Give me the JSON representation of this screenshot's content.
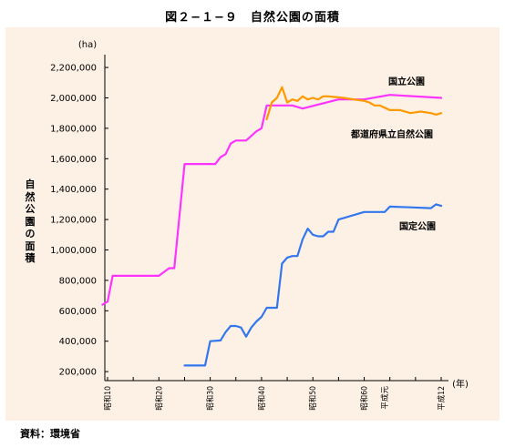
{
  "figure_title": "図２−１−９　自然公園の面積",
  "source": "資料：環境省",
  "colors": {
    "national_park": "#ff33ff",
    "quasi_national_park": "#3377ee",
    "prefectural_park": "#ff9900",
    "panel_background": "#fdf1e5"
  },
  "chart_data": {
    "type": "line",
    "title": "",
    "ylabel": "自然公園の面積",
    "yunit": "(ha)",
    "xunit": "(年)",
    "ylim": [
      100000,
      2300000
    ],
    "yticks": [
      200000,
      400000,
      600000,
      800000,
      1000000,
      1200000,
      1400000,
      1600000,
      1800000,
      2000000,
      2200000
    ],
    "ytick_labels": [
      "200,000",
      "400,000",
      "600,000",
      "800,000",
      "1,000,000",
      "1,200,000",
      "1,400,000",
      "1,600,000",
      "1,800,000",
      "2,000,000",
      "2,200,000"
    ],
    "xlim": [
      1935,
      2000
    ],
    "xticks": [
      1935,
      1945,
      1955,
      1965,
      1975,
      1985,
      1989,
      2000
    ],
    "xtick_labels": [
      "昭和10",
      "昭和20",
      "昭和30",
      "昭和40",
      "昭和50",
      "昭和60",
      "平成元",
      "平成12"
    ],
    "grid": false,
    "series": [
      {
        "name": "国立公園",
        "x": [
          1934,
          1935,
          1936,
          1944,
          1945,
          1947,
          1948,
          1950,
          1956,
          1957,
          1958,
          1959,
          1960,
          1962,
          1964,
          1965,
          1966,
          1970,
          1971,
          1972,
          1973,
          1980,
          1983,
          1984,
          1985,
          1990,
          2000
        ],
        "y": [
          640000,
          660000,
          830000,
          830000,
          830000,
          880000,
          880000,
          1565000,
          1565000,
          1610000,
          1630000,
          1700000,
          1720000,
          1720000,
          1780000,
          1800000,
          1950000,
          1950000,
          1950000,
          1940000,
          1930000,
          1990000,
          1990000,
          1990000,
          1990000,
          2020000,
          2000000
        ]
      },
      {
        "name": "国定公園",
        "x": [
          1950,
          1954,
          1955,
          1957,
          1958,
          1959,
          1960,
          1961,
          1962,
          1963,
          1964,
          1965,
          1966,
          1967,
          1968,
          1969,
          1970,
          1971,
          1972,
          1973,
          1974,
          1975,
          1976,
          1977,
          1978,
          1979,
          1980,
          1985,
          1989,
          1990,
          1994,
          1998,
          1999,
          2000
        ],
        "y": [
          240000,
          240000,
          400000,
          405000,
          460000,
          500000,
          500000,
          490000,
          430000,
          490000,
          530000,
          560000,
          620000,
          620000,
          620000,
          910000,
          950000,
          960000,
          960000,
          1070000,
          1140000,
          1100000,
          1090000,
          1090000,
          1120000,
          1120000,
          1200000,
          1250000,
          1250000,
          1285000,
          1280000,
          1275000,
          1300000,
          1290000
        ]
      },
      {
        "name": "都道府県立自然公園",
        "x": [
          1966,
          1967,
          1968,
          1969,
          1970,
          1971,
          1972,
          1973,
          1974,
          1975,
          1976,
          1977,
          1978,
          1981,
          1985,
          1986,
          1987,
          1988,
          1990,
          1992,
          1994,
          1996,
          1998,
          1999,
          2000
        ],
        "y": [
          1860000,
          1970000,
          2000000,
          2070000,
          1970000,
          1990000,
          1980000,
          2010000,
          1990000,
          2000000,
          1990000,
          2010000,
          2010000,
          2000000,
          1980000,
          1970000,
          1950000,
          1950000,
          1920000,
          1920000,
          1900000,
          1910000,
          1900000,
          1890000,
          1900000
        ]
      }
    ]
  }
}
